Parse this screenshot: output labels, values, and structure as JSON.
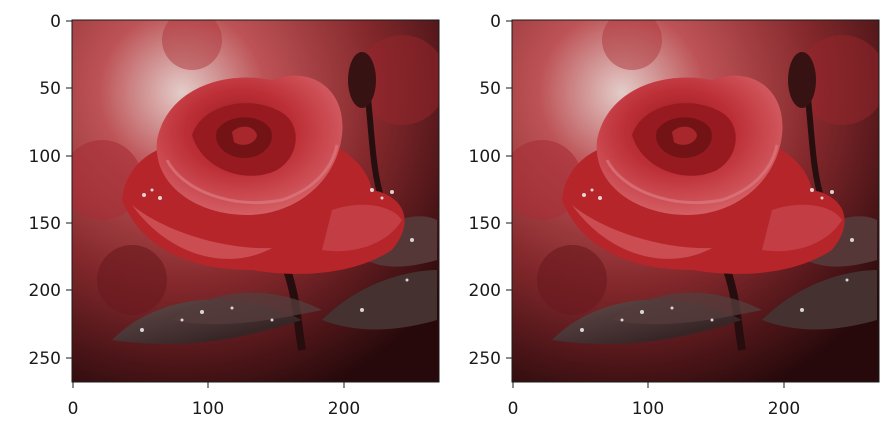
{
  "figure": {
    "panels": [
      {
        "name": "left",
        "y_ticks": [
          "0",
          "50",
          "100",
          "150",
          "200",
          "250"
        ],
        "x_ticks": [
          "0",
          "100",
          "200"
        ]
      },
      {
        "name": "right",
        "y_ticks": [
          "0",
          "50",
          "100",
          "150",
          "200",
          "250"
        ],
        "x_ticks": [
          "0",
          "100",
          "200"
        ]
      }
    ],
    "image_content": "red-rose-with-dew-drops",
    "colors": {
      "rose": "#c0282c",
      "rose_dark": "#7a1518",
      "rose_light": "#e0646a",
      "background_dark": "#2a0a0c",
      "background_mid": "#8a2a2e",
      "leaf": "#3b2a2a",
      "axis": "#1a1a1a"
    }
  }
}
